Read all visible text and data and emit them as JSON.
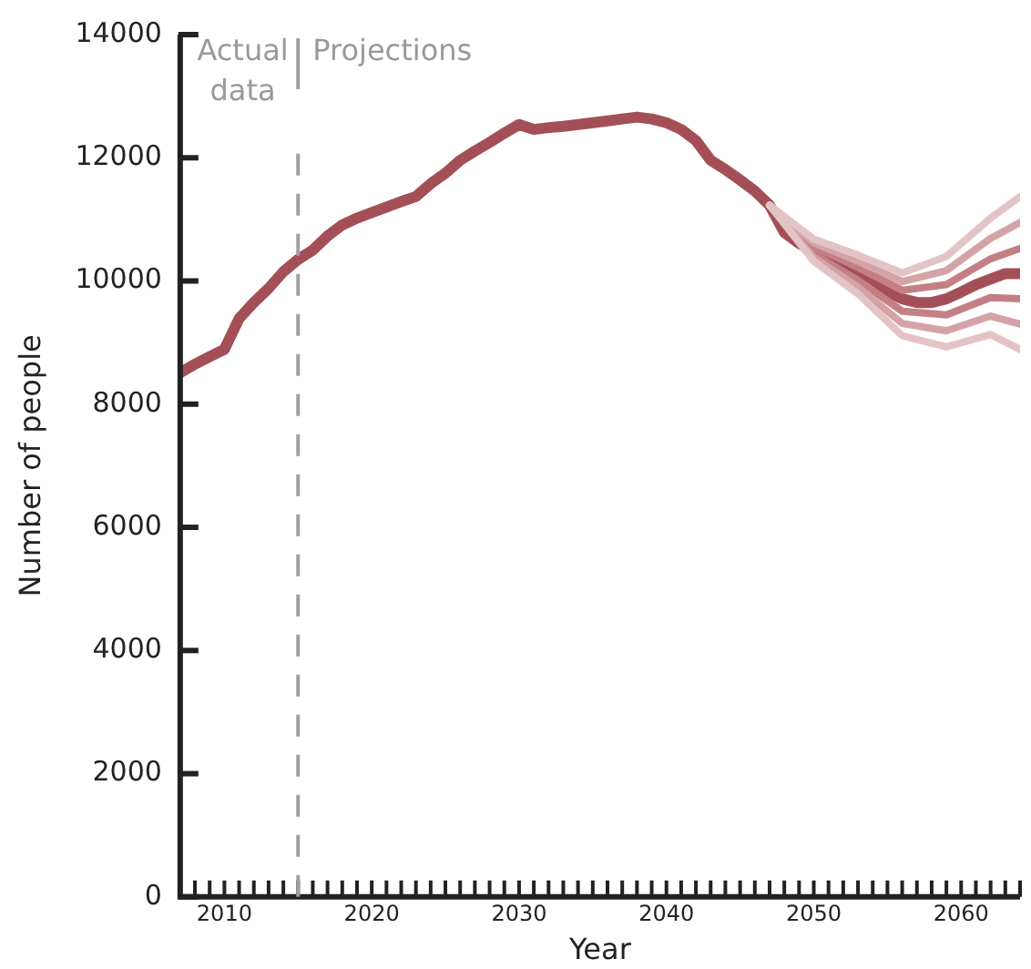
{
  "chart_data": {
    "type": "line",
    "xlabel": "Year",
    "ylabel": "Number of people",
    "xlim": [
      2007,
      2064
    ],
    "xticks": [
      {
        "value": 2007,
        "label": null
      },
      {
        "value": 2008,
        "label": null
      },
      {
        "value": 2009,
        "label": null
      },
      2010,
      {
        "value": 2011,
        "label": null
      },
      {
        "value": 2012,
        "label": null
      },
      {
        "value": 2013,
        "label": null
      },
      {
        "value": 2014,
        "label": null
      },
      {
        "value": 2015,
        "label": null
      },
      {
        "value": 2016,
        "label": null
      },
      {
        "value": 2017,
        "label": null
      },
      {
        "value": 2018,
        "label": null
      },
      {
        "value": 2019,
        "label": null
      },
      2020,
      {
        "value": 2021,
        "label": null
      },
      {
        "value": 2022,
        "label": null
      },
      {
        "value": 2023,
        "label": null
      },
      {
        "value": 2024,
        "label": null
      },
      {
        "value": 2025,
        "label": null
      },
      {
        "value": 2026,
        "label": null
      },
      {
        "value": 2027,
        "label": null
      },
      {
        "value": 2028,
        "label": null
      },
      {
        "value": 2029,
        "label": null
      },
      2030,
      {
        "value": 2031,
        "label": null
      },
      {
        "value": 2032,
        "label": null
      },
      {
        "value": 2033,
        "label": null
      },
      {
        "value": 2034,
        "label": null
      },
      {
        "value": 2035,
        "label": null
      },
      {
        "value": 2036,
        "label": null
      },
      {
        "value": 2037,
        "label": null
      },
      {
        "value": 2038,
        "label": null
      },
      {
        "value": 2039,
        "label": null
      },
      2040,
      {
        "value": 2041,
        "label": null
      },
      {
        "value": 2042,
        "label": null
      },
      {
        "value": 2043,
        "label": null
      },
      {
        "value": 2044,
        "label": null
      },
      {
        "value": 2045,
        "label": null
      },
      {
        "value": 2046,
        "label": null
      },
      {
        "value": 2047,
        "label": null
      },
      {
        "value": 2048,
        "label": null
      },
      {
        "value": 2049,
        "label": null
      },
      2050,
      {
        "value": 2051,
        "label": null
      },
      {
        "value": 2052,
        "label": null
      },
      {
        "value": 2053,
        "label": null
      },
      {
        "value": 2054,
        "label": null
      },
      {
        "value": 2055,
        "label": null
      },
      {
        "value": 2056,
        "label": null
      },
      {
        "value": 2057,
        "label": null
      },
      {
        "value": 2058,
        "label": null
      },
      {
        "value": 2059,
        "label": null
      },
      2060,
      {
        "value": 2061,
        "label": null
      },
      {
        "value": 2062,
        "label": null
      },
      {
        "value": 2063,
        "label": null
      },
      {
        "value": 2064,
        "label": null
      }
    ],
    "ylim": [
      0,
      14000
    ],
    "yticks": [
      0,
      2000,
      4000,
      6000,
      8000,
      10000,
      12000,
      14000
    ],
    "grid": false,
    "legend": false,
    "marker": "none",
    "line_style": "solid",
    "ref_lines": [
      {
        "axis": "x",
        "value": 2015,
        "color": "#a0a0a0",
        "line_style": "dashed"
      }
    ],
    "annotations": [
      "Actual data",
      "Projections"
    ],
    "series": [
      {
        "color": "#e3c4c6",
        "x": [
          2047,
          2050,
          2053,
          2056,
          2059,
          2062,
          2064
        ],
        "values": [
          11230,
          10680,
          10420,
          10130,
          10400,
          11020,
          11370
        ]
      },
      {
        "color": "#e3c4c6",
        "x": [
          2047,
          2050,
          2053,
          2056,
          2059,
          2062,
          2064
        ],
        "values": [
          11230,
          10320,
          9790,
          9110,
          8930,
          9130,
          8890
        ]
      },
      {
        "color": "#d4a3a7",
        "x": [
          2047,
          2050,
          2053,
          2056,
          2059,
          2062,
          2064
        ],
        "values": [
          11230,
          10620,
          10320,
          9990,
          10170,
          10690,
          10950
        ]
      },
      {
        "color": "#d4a3a7",
        "x": [
          2047,
          2050,
          2053,
          2056,
          2059,
          2062,
          2064
        ],
        "values": [
          11230,
          10380,
          9900,
          9310,
          9190,
          9430,
          9300
        ]
      },
      {
        "color": "#c47f85",
        "x": [
          2047,
          2050,
          2053,
          2056,
          2059,
          2062,
          2064
        ],
        "values": [
          11230,
          10560,
          10220,
          9850,
          9940,
          10360,
          10530
        ]
      },
      {
        "color": "#c47f85",
        "x": [
          2047,
          2050,
          2053,
          2056,
          2059,
          2062,
          2064
        ],
        "values": [
          11230,
          10440,
          10010,
          9510,
          9450,
          9730,
          9710
        ]
      },
      {
        "color": "#a44f57",
        "x": [
          2007,
          2008,
          2009,
          2010,
          2011,
          2012,
          2013,
          2014,
          2015,
          2016,
          2017,
          2018,
          2019,
          2020,
          2021,
          2022,
          2023,
          2024,
          2025,
          2026,
          2027,
          2028,
          2029,
          2030,
          2031,
          2032,
          2033,
          2034,
          2035,
          2036,
          2037,
          2038,
          2039,
          2040,
          2041,
          2042,
          2043,
          2044,
          2045,
          2046,
          2047,
          2048,
          2049,
          2050,
          2051,
          2052,
          2053,
          2054,
          2055,
          2056,
          2057,
          2058,
          2059,
          2060,
          2061,
          2062,
          2063,
          2064
        ],
        "values": [
          8510,
          8650,
          8770,
          8890,
          9390,
          9650,
          9880,
          10150,
          10350,
          10500,
          10730,
          10910,
          11020,
          11110,
          11200,
          11290,
          11370,
          11580,
          11750,
          11960,
          12110,
          12250,
          12400,
          12540,
          12460,
          12490,
          12510,
          12540,
          12570,
          12600,
          12630,
          12660,
          12630,
          12570,
          12460,
          12280,
          11960,
          11810,
          11640,
          11460,
          11230,
          10790,
          10610,
          10500,
          10380,
          10260,
          10120,
          9970,
          9820,
          9710,
          9650,
          9650,
          9710,
          9820,
          9940,
          10030,
          10120,
          10120
        ]
      }
    ]
  }
}
